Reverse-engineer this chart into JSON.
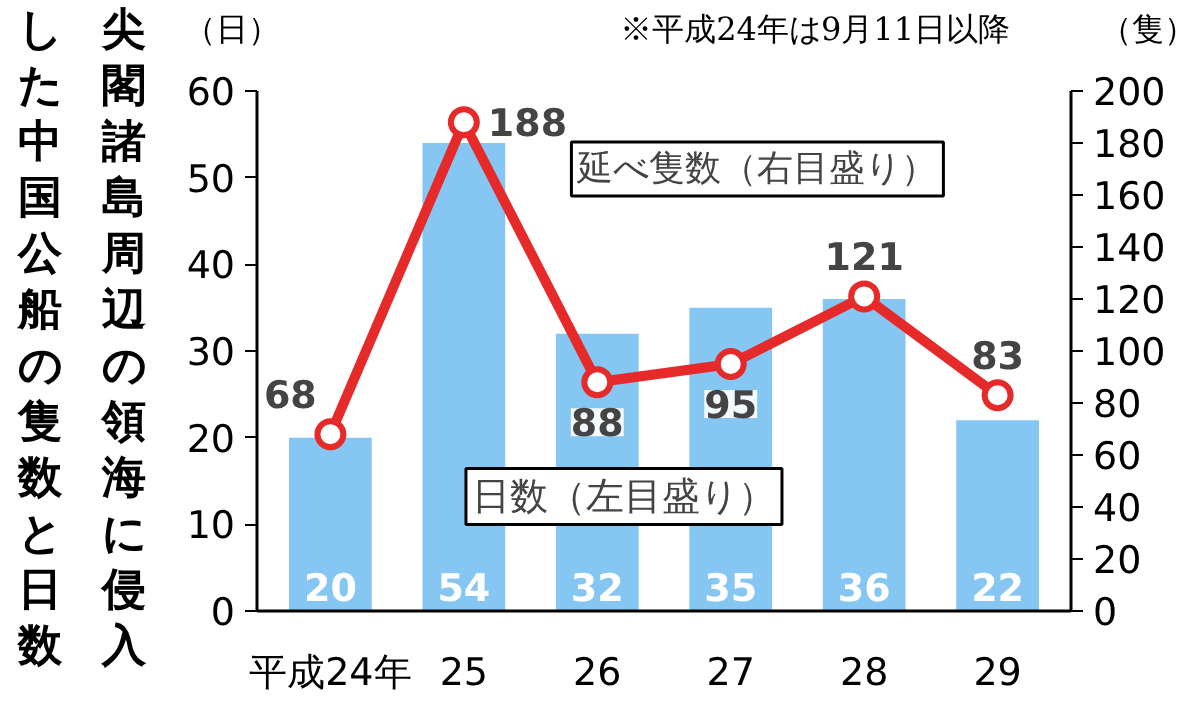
{
  "chart_data": {
    "type": "bar",
    "title": "尖閣諸島周辺の領海に侵入した中国公船の隻数と日数",
    "categories": [
      "平成24年",
      "25",
      "26",
      "27",
      "28",
      "29"
    ],
    "series": [
      {
        "name": "日数（左目盛り）",
        "color": "#85c6f3",
        "values": [
          20,
          54,
          32,
          35,
          36,
          22
        ]
      },
      {
        "name": "延べ隻数（右目盛り）",
        "type": "line",
        "axis": "y2",
        "color": "#e62a2a",
        "values": [
          68,
          188,
          88,
          95,
          121,
          83
        ]
      }
    ],
    "ylabel": "（日）",
    "y2label": "（隻）",
    "ylim": [
      0,
      60
    ],
    "yticks": [
      0,
      10,
      20,
      30,
      40,
      50,
      60
    ],
    "y2lim": [
      0,
      200
    ],
    "y2ticks": [
      0,
      20,
      40,
      60,
      80,
      100,
      120,
      140,
      160,
      180,
      200
    ],
    "annotations": [
      "※平成24年は9月11日以降"
    ],
    "data_labels": true,
    "marker": "circle",
    "grid": false
  }
}
